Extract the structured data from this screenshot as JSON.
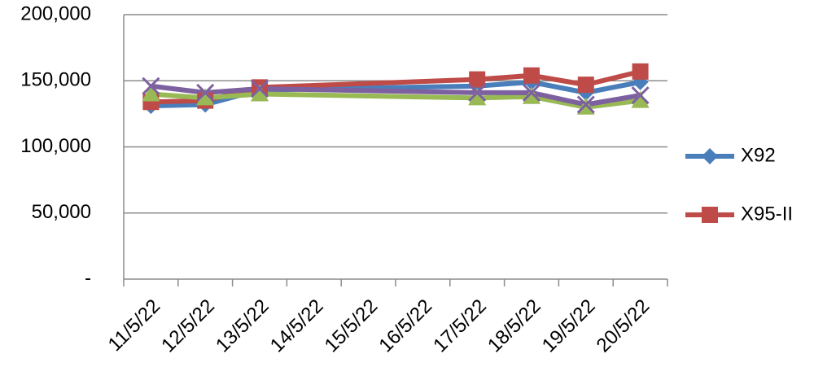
{
  "chart_data": {
    "type": "line",
    "categories": [
      "11/5/22",
      "12/5/22",
      "13/5/22",
      "14/5/22",
      "15/5/22",
      "16/5/22",
      "17/5/22",
      "18/5/22",
      "19/5/22",
      "20/5/22"
    ],
    "series": [
      {
        "name": "X92",
        "color": "#4a7ebb",
        "marker": "diamond",
        "values": [
          131000,
          132000,
          143000,
          null,
          null,
          null,
          146000,
          149000,
          141000,
          149000
        ]
      },
      {
        "name": "X95-II",
        "color": "#be4b48",
        "marker": "square",
        "values": [
          134000,
          135000,
          145000,
          null,
          null,
          null,
          151000,
          154000,
          147000,
          157000
        ]
      },
      {
        "color": "#98b954",
        "marker": "triangle",
        "values": [
          140000,
          137000,
          140000,
          null,
          null,
          null,
          137000,
          138000,
          130000,
          135000
        ]
      },
      {
        "color": "#7d60a0",
        "marker": "x",
        "values": [
          146000,
          141000,
          144000,
          null,
          null,
          null,
          141000,
          141000,
          132000,
          139000
        ]
      }
    ],
    "connect_gaps": true,
    "ylim": [
      0,
      200000
    ],
    "yticks": [
      {
        "value": 0,
        "label": "-"
      },
      {
        "value": 50000,
        "label": "50,000"
      },
      {
        "value": 100000,
        "label": "100,000"
      },
      {
        "value": 150000,
        "label": "150,000"
      },
      {
        "value": 200000,
        "label": "200,000"
      }
    ],
    "grid": true,
    "legend": "right"
  }
}
